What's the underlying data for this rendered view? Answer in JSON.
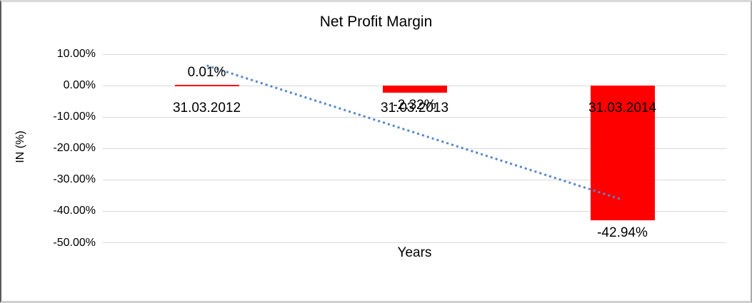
{
  "chart_data": {
    "type": "bar",
    "title": "Net Profit Margin",
    "xlabel": "Years",
    "ylabel": "IN (%)",
    "categories": [
      "31.03.2012",
      "31.03.2013",
      "31.03.2014"
    ],
    "values": [
      0.01,
      -2.32,
      -42.94
    ],
    "value_labels": [
      "0.01%",
      "-2.32%",
      "-42.94%"
    ],
    "y_ticks": [
      {
        "value": 10,
        "label": "10.00%"
      },
      {
        "value": 0,
        "label": "0.00%"
      },
      {
        "value": -10,
        "label": "-10.00%"
      },
      {
        "value": -20,
        "label": "-20.00%"
      },
      {
        "value": -30,
        "label": "-30.00%"
      },
      {
        "value": -40,
        "label": "-40.00%"
      },
      {
        "value": -50,
        "label": "-50.00%"
      }
    ],
    "ylim": [
      -50,
      10
    ],
    "grid": true,
    "legend": "none",
    "bar_color": "#ff0000",
    "gridline_color": "#d9d9d9",
    "text_color": "#000000",
    "trendline": {
      "style": "dotted-linear",
      "color": "#5587c8",
      "start_value": 6.4,
      "end_value": -36.3
    }
  }
}
